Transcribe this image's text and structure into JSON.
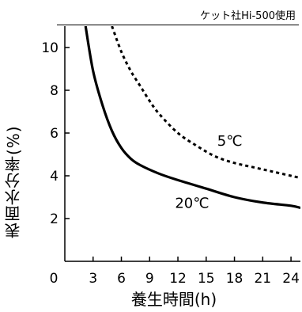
{
  "chart_data": {
    "type": "line",
    "note": "ケット社Hi-500使用",
    "xlabel": "養生時間(h)",
    "ylabel": "表面水分率(%)",
    "xlim": [
      0,
      25
    ],
    "ylim": [
      0,
      11
    ],
    "x_ticks": [
      "0",
      "3",
      "6",
      "9",
      "12",
      "15",
      "18",
      "21",
      "24"
    ],
    "y_ticks": [
      "2",
      "4",
      "6",
      "8",
      "10"
    ],
    "series": [
      {
        "name": "20℃",
        "style": "solid",
        "color": "#000000",
        "x": [
          2.2,
          3,
          4,
          5,
          6,
          7,
          8,
          10,
          12,
          15,
          18,
          21,
          24,
          25
        ],
        "y": [
          11,
          8.9,
          7.3,
          6.1,
          5.3,
          4.8,
          4.5,
          4.1,
          3.8,
          3.4,
          3.0,
          2.75,
          2.6,
          2.5
        ]
      },
      {
        "name": "5℃",
        "style": "dotted",
        "color": "#000000",
        "x": [
          5.0,
          6,
          7,
          8,
          9,
          10,
          12,
          14,
          16,
          18,
          20,
          22,
          24,
          25
        ],
        "y": [
          11,
          9.8,
          8.9,
          8.2,
          7.5,
          6.9,
          6.0,
          5.4,
          4.9,
          4.6,
          4.4,
          4.2,
          4.0,
          3.9
        ]
      }
    ],
    "series_labels": [
      {
        "text": "5℃",
        "x": 17.5,
        "y": 5.4
      },
      {
        "text": "20℃",
        "x": 13.5,
        "y": 2.5
      }
    ]
  }
}
